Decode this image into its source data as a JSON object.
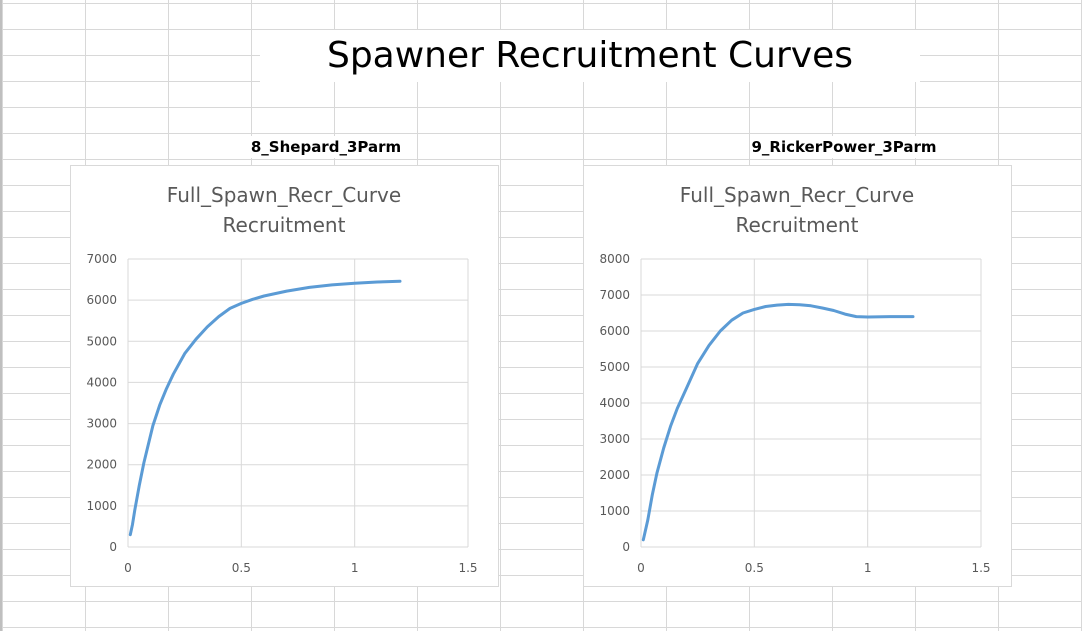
{
  "page": {
    "title": "Spawner Recruitment Curves",
    "labels": [
      "8_Shepard_3Parm",
      "9_RickerPower_3Parm"
    ]
  },
  "colors": {
    "series": "#5b9bd5",
    "grid": "#d9d9d9",
    "axis_text": "#595959"
  },
  "chart_data": [
    {
      "type": "line",
      "title": "Full_Spawn_Recr_Curve Recruitment",
      "title_lines": [
        "Full_Spawn_Recr_Curve",
        "Recruitment"
      ],
      "xlim": [
        0,
        1.5
      ],
      "ylim": [
        0,
        7000
      ],
      "x_ticks": [
        0,
        0.5,
        1,
        1.5
      ],
      "y_ticks": [
        0,
        1000,
        2000,
        3000,
        4000,
        5000,
        6000,
        7000
      ],
      "x_tick_labels": [
        "0",
        "0.5",
        "1",
        "1.5"
      ],
      "y_tick_labels": [
        "0",
        "1000",
        "2000",
        "3000",
        "4000",
        "5000",
        "6000",
        "7000"
      ],
      "grid": true,
      "legend": "none",
      "series": [
        {
          "x": [
            0.01,
            0.02,
            0.03,
            0.05,
            0.07,
            0.09,
            0.11,
            0.14,
            0.17,
            0.2,
            0.25,
            0.3,
            0.35,
            0.4,
            0.45,
            0.5,
            0.55,
            0.6,
            0.7,
            0.8,
            0.9,
            1.0,
            1.1,
            1.2
          ],
          "values": [
            300,
            550,
            900,
            1500,
            2050,
            2500,
            2950,
            3450,
            3850,
            4200,
            4700,
            5050,
            5350,
            5600,
            5800,
            5920,
            6020,
            6100,
            6220,
            6310,
            6370,
            6410,
            6440,
            6460
          ]
        }
      ]
    },
    {
      "type": "line",
      "title": "Full_Spawn_Recr_Curve Recruitment",
      "title_lines": [
        "Full_Spawn_Recr_Curve",
        "Recruitment"
      ],
      "xlim": [
        0,
        1.5
      ],
      "ylim": [
        0,
        8000
      ],
      "x_ticks": [
        0,
        0.5,
        1,
        1.5
      ],
      "y_ticks": [
        0,
        1000,
        2000,
        3000,
        4000,
        5000,
        6000,
        7000,
        8000
      ],
      "x_tick_labels": [
        "0",
        "0.5",
        "1",
        "1.5"
      ],
      "y_tick_labels": [
        "0",
        "1000",
        "2000",
        "3000",
        "4000",
        "5000",
        "6000",
        "7000",
        "8000"
      ],
      "grid": true,
      "legend": "none",
      "series": [
        {
          "x": [
            0.01,
            0.03,
            0.05,
            0.07,
            0.1,
            0.13,
            0.16,
            0.2,
            0.25,
            0.3,
            0.35,
            0.4,
            0.45,
            0.5,
            0.55,
            0.6,
            0.65,
            0.7,
            0.75,
            0.8,
            0.85,
            0.9,
            0.95,
            1.0,
            1.1,
            1.2
          ],
          "values": [
            200,
            750,
            1450,
            2050,
            2750,
            3350,
            3850,
            4400,
            5100,
            5600,
            6000,
            6300,
            6500,
            6600,
            6680,
            6720,
            6740,
            6730,
            6700,
            6640,
            6570,
            6470,
            6400,
            6390,
            6400,
            6400
          ]
        }
      ]
    }
  ]
}
